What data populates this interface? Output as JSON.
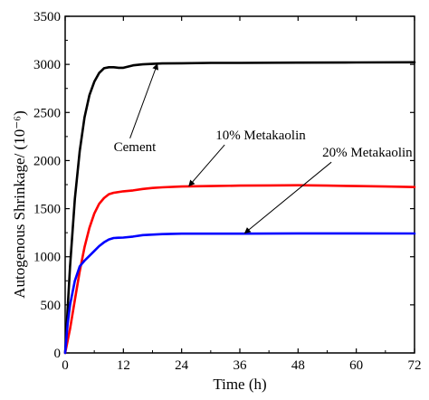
{
  "chart_data": {
    "type": "line",
    "title": "",
    "xlabel": "Time (h)",
    "ylabel": "Autogenous Shrinkage/ (10⁻⁶)",
    "xlim": [
      0,
      72
    ],
    "ylim": [
      0,
      3500
    ],
    "x_ticks": [
      0,
      12,
      24,
      36,
      48,
      60,
      72
    ],
    "y_ticks": [
      0,
      500,
      1000,
      1500,
      2000,
      2500,
      3000,
      3500
    ],
    "grid": false,
    "legend": "none (series labelled by arrow annotations)",
    "series": [
      {
        "name": "Cement",
        "color": "#000000",
        "x": [
          0,
          1,
          2,
          3,
          4,
          5,
          6,
          7,
          8,
          9,
          10,
          11,
          12,
          14,
          16,
          18,
          20,
          24,
          30,
          36,
          48,
          60,
          72
        ],
        "y": [
          0,
          900,
          1600,
          2100,
          2450,
          2680,
          2820,
          2910,
          2960,
          2970,
          2970,
          2965,
          2965,
          2990,
          3000,
          3005,
          3010,
          3012,
          3015,
          3015,
          3018,
          3020,
          3022
        ]
      },
      {
        "name": "10% Metakaolin",
        "color": "#ff0000",
        "x": [
          0,
          1,
          2,
          3,
          4,
          5,
          6,
          7,
          8,
          9,
          10,
          12,
          14,
          16,
          18,
          20,
          24,
          30,
          36,
          42,
          48,
          54,
          60,
          66,
          72
        ],
        "y": [
          0,
          250,
          550,
          850,
          1100,
          1300,
          1450,
          1550,
          1610,
          1650,
          1665,
          1680,
          1690,
          1705,
          1715,
          1722,
          1730,
          1735,
          1740,
          1742,
          1743,
          1740,
          1735,
          1730,
          1725
        ]
      },
      {
        "name": "20% Metakaolin",
        "color": "#0000ff",
        "x": [
          0,
          0.5,
          1,
          2,
          3,
          4,
          5,
          6,
          7,
          8,
          9,
          10,
          11,
          12,
          14,
          16,
          20,
          24,
          36,
          48,
          60,
          72
        ],
        "y": [
          0,
          300,
          500,
          750,
          900,
          960,
          1010,
          1060,
          1110,
          1150,
          1180,
          1195,
          1198,
          1200,
          1210,
          1225,
          1235,
          1240,
          1240,
          1243,
          1243,
          1242
        ]
      }
    ],
    "annotations": [
      {
        "text": "Cement",
        "label_at": [
          10,
          2100
        ],
        "arrow_to": [
          19,
          3005
        ]
      },
      {
        "text": "10% Metakaolin",
        "label_at": [
          31,
          2220
        ],
        "arrow_to": [
          25.5,
          1735
        ]
      },
      {
        "text": "20% Metakaolin",
        "label_at": [
          53,
          2040
        ],
        "arrow_to": [
          37,
          1245
        ]
      }
    ]
  }
}
